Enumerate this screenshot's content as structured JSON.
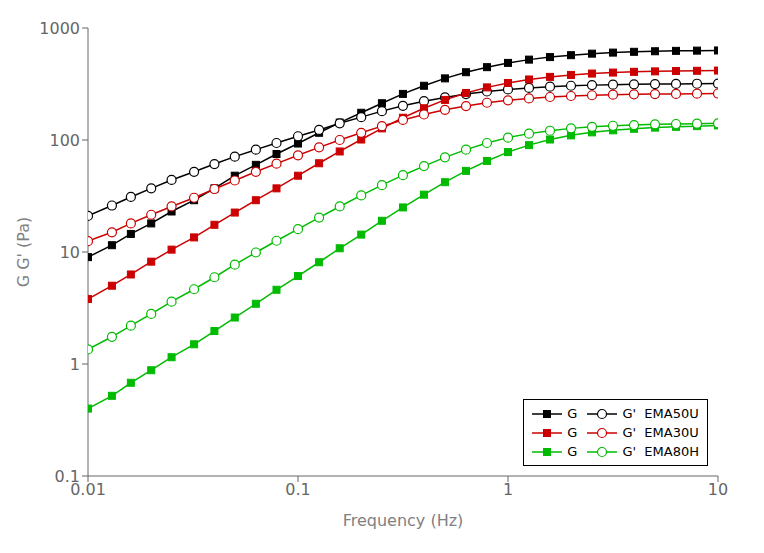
{
  "chart_data": {
    "type": "line",
    "log": true,
    "x_label": "Frequency (Hz)",
    "y_label": "G  G' (Pa)",
    "xlim": [
      0.01,
      10
    ],
    "xticks": [
      0.01,
      0.1,
      1,
      10
    ],
    "ylim": [
      0.1,
      1000
    ],
    "yticks": [
      0.1,
      1,
      10,
      100,
      1000
    ],
    "grid": false,
    "legend": "lower right",
    "x": [
      0.01,
      0.013,
      0.016,
      0.02,
      0.025,
      0.032,
      0.04,
      0.05,
      0.063,
      0.079,
      0.1,
      0.126,
      0.158,
      0.2,
      0.251,
      0.316,
      0.398,
      0.501,
      0.631,
      0.794,
      1.0,
      1.259,
      1.585,
      1.995,
      2.512,
      3.162,
      3.981,
      5.012,
      6.31,
      7.943,
      10.0
    ],
    "series": [
      {
        "name": "G",
        "color": "#000000",
        "marker": "square",
        "line_style": "solid",
        "values": [
          9.0,
          11.5,
          14.5,
          18.0,
          23.0,
          29.0,
          37.0,
          48.0,
          60.0,
          75.0,
          93.0,
          116.0,
          143.0,
          175.0,
          213.0,
          258.0,
          305.0,
          355.0,
          403.0,
          447.0,
          488.0,
          522.0,
          550.0,
          572.0,
          590.0,
          603.0,
          613.0,
          620.0,
          625.0,
          628.0,
          630.0
        ]
      },
      {
        "name": "G'  EMA50U",
        "color": "#000000",
        "marker": "open_circle",
        "line_style": "solid",
        "values": [
          21.0,
          26.0,
          31.0,
          37.0,
          44.0,
          52.0,
          61.0,
          71.0,
          82.0,
          94.0,
          108.0,
          123.0,
          141.0,
          160.0,
          181.0,
          202.0,
          222.0,
          240.0,
          257.0,
          271.0,
          283.0,
          292.0,
          299.0,
          305.0,
          309.0,
          312.0,
          314.0,
          316.0,
          317.0,
          318.0,
          319.0
        ]
      },
      {
        "name": "G",
        "color": "#cc0000",
        "marker": "square",
        "line_style": "solid",
        "values": [
          3.8,
          5.0,
          6.3,
          8.2,
          10.5,
          13.5,
          17.5,
          22.5,
          29.0,
          37.0,
          48.0,
          62.0,
          79.0,
          101.0,
          127.0,
          158.0,
          192.0,
          228.0,
          263.0,
          295.0,
          323.0,
          347.0,
          366.0,
          381.0,
          392.0,
          400.0,
          406.0,
          410.0,
          413.0,
          415.0,
          417.0
        ]
      },
      {
        "name": "G'  EMA30U",
        "color": "#cc0000",
        "marker": "open_circle",
        "line_style": "solid",
        "values": [
          12.5,
          15.0,
          18.0,
          21.5,
          25.5,
          30.5,
          36.5,
          43.5,
          52.0,
          61.5,
          73.0,
          86.0,
          100.0,
          116.0,
          133.0,
          151.0,
          169.0,
          186.0,
          201.0,
          215.0,
          226.0,
          235.0,
          242.0,
          247.0,
          251.0,
          254.0,
          256.0,
          257.0,
          258.0,
          259.0,
          260.0
        ]
      },
      {
        "name": "G",
        "color": "#00bb00",
        "marker": "square",
        "line_style": "solid",
        "values": [
          0.4,
          0.52,
          0.68,
          0.88,
          1.15,
          1.5,
          1.97,
          2.6,
          3.45,
          4.6,
          6.1,
          8.1,
          10.8,
          14.3,
          19.0,
          25.0,
          32.5,
          42.0,
          53.0,
          65.0,
          78.0,
          90.0,
          101.0,
          110.0,
          117.0,
          122.0,
          126.0,
          129.0,
          131.0,
          133.0,
          135.0
        ]
      },
      {
        "name": "G'  EMA80H",
        "color": "#00bb00",
        "marker": "open_circle",
        "line_style": "solid",
        "values": [
          1.35,
          1.75,
          2.2,
          2.8,
          3.6,
          4.65,
          5.95,
          7.7,
          9.9,
          12.6,
          16.0,
          20.3,
          25.5,
          32.0,
          39.5,
          48.5,
          58.5,
          70.0,
          82.0,
          94.0,
          105.0,
          114.0,
          121.0,
          127.0,
          131.0,
          134.0,
          136.0,
          138.0,
          139.0,
          140.0,
          141.0
        ]
      }
    ]
  }
}
